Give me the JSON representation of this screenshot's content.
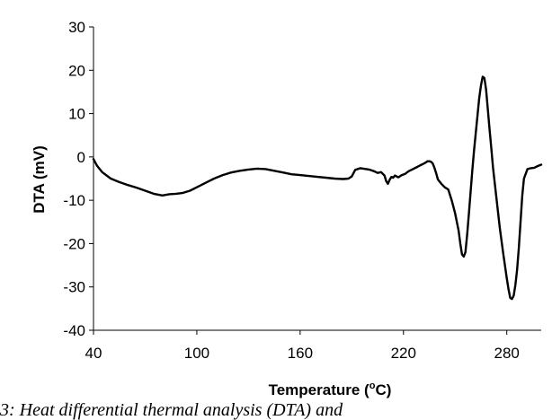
{
  "chart_data": {
    "type": "line",
    "title": "",
    "xlabel": "Temperature (",
    "xlabel_sup": "o",
    "xlabel_end": "C)",
    "ylabel": "DTA (mV)",
    "xlim": [
      40,
      300
    ],
    "ylim": [
      -40,
      30
    ],
    "x_ticks": [
      "40",
      "100",
      "160",
      "220",
      "280"
    ],
    "y_ticks": [
      "30",
      "20",
      "10",
      "0",
      "-10",
      "-20",
      "-30",
      "-40"
    ],
    "grid": false,
    "line_color": "#000000",
    "series": [
      {
        "x": [
          40,
          42,
          45,
          50,
          55,
          60,
          65,
          70,
          75,
          80,
          84,
          88,
          92,
          96,
          100,
          105,
          110,
          115,
          120,
          125,
          130,
          135,
          140,
          145,
          150,
          155,
          160,
          165,
          170,
          175,
          180,
          185,
          188,
          190,
          192,
          195,
          200,
          203,
          205,
          207,
          209,
          210,
          211,
          212,
          213,
          214,
          215,
          217,
          219,
          221,
          223,
          225,
          228,
          230,
          232,
          234,
          235,
          236,
          237,
          238,
          239,
          240,
          242,
          244,
          246,
          248,
          250,
          252,
          253,
          254,
          255,
          256,
          257,
          258,
          259,
          260,
          261,
          262,
          263,
          264,
          265,
          266,
          267,
          268,
          269,
          270,
          271,
          272,
          274,
          276,
          278,
          280,
          281,
          282,
          283,
          284,
          285,
          286,
          287,
          288,
          289,
          290,
          292,
          294,
          296,
          298,
          300
        ],
        "y": [
          -0.5,
          -2,
          -3.5,
          -5,
          -5.8,
          -6.5,
          -7.1,
          -7.8,
          -8.5,
          -8.9,
          -8.6,
          -8.5,
          -8.3,
          -7.8,
          -7,
          -6,
          -5,
          -4.2,
          -3.6,
          -3.2,
          -2.9,
          -2.7,
          -2.8,
          -3.2,
          -3.6,
          -4,
          -4.2,
          -4.4,
          -4.6,
          -4.8,
          -5,
          -5.1,
          -5,
          -4.5,
          -3,
          -2.6,
          -2.9,
          -3.3,
          -3.7,
          -3.5,
          -4.3,
          -5.6,
          -6.2,
          -5.3,
          -4.6,
          -4.8,
          -4.3,
          -4.7,
          -4.2,
          -3.9,
          -3.3,
          -2.9,
          -2.3,
          -1.9,
          -1.5,
          -1,
          -1,
          -1.1,
          -1.5,
          -2.5,
          -3.8,
          -5.2,
          -6.2,
          -7,
          -7.5,
          -10,
          -13,
          -17,
          -20,
          -22.5,
          -23,
          -22,
          -18,
          -13,
          -8,
          -3,
          1.5,
          5.5,
          9.5,
          13.5,
          16.5,
          18.5,
          18.2,
          15.5,
          11,
          6.5,
          2,
          -2.5,
          -9.5,
          -16.5,
          -22.5,
          -28,
          -30.5,
          -32.5,
          -32.8,
          -32,
          -29.5,
          -26,
          -21,
          -15,
          -9,
          -5,
          -2.8,
          -2.6,
          -2.5,
          -2.1,
          -1.8
        ]
      }
    ]
  },
  "caption": {
    "text": "3: Heat differential thermal analysis (DTA) and"
  }
}
